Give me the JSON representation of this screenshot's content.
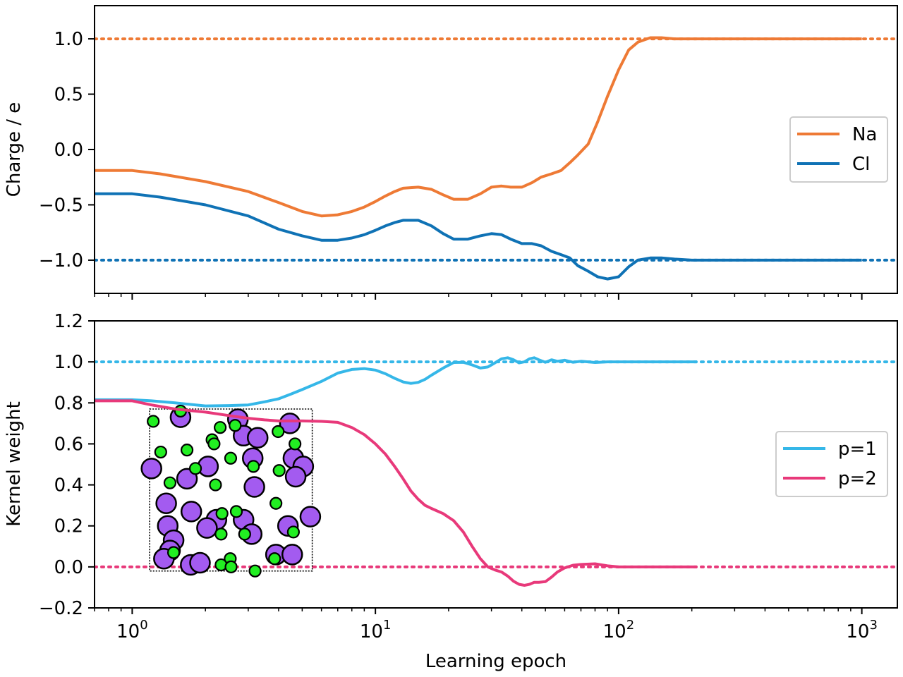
{
  "chart_data": [
    {
      "type": "line",
      "xlabel": "",
      "ylabel": "Charge / e",
      "xscale": "log",
      "xlim": [
        0.7,
        1400
      ],
      "ylim": [
        -1.3,
        1.3
      ],
      "yticks": [
        {
          "value": 1.0,
          "label": "1.0"
        },
        {
          "value": 0.5,
          "label": "0.5"
        },
        {
          "value": 0.0,
          "label": "0.0"
        },
        {
          "value": -0.5,
          "label": "−0.5"
        },
        {
          "value": -1.0,
          "label": "−1.0"
        }
      ],
      "xticks_labeled": false,
      "legend_position": "center-right",
      "series": [
        {
          "name": "Na",
          "color": "#ee7a35",
          "x": [
            0.7,
            1,
            1.3,
            2,
            3,
            4,
            5,
            6,
            7,
            8,
            9,
            10,
            11,
            12,
            13,
            15,
            17,
            19,
            21,
            24,
            27,
            30,
            33,
            36,
            40,
            44,
            48,
            53,
            58,
            63,
            68,
            75,
            82,
            90,
            100,
            110,
            120,
            135,
            150,
            170,
            200,
            300,
            500,
            1000
          ],
          "y": [
            -0.19,
            -0.19,
            -0.22,
            -0.29,
            -0.38,
            -0.48,
            -0.56,
            -0.6,
            -0.59,
            -0.56,
            -0.52,
            -0.47,
            -0.42,
            -0.38,
            -0.35,
            -0.34,
            -0.36,
            -0.41,
            -0.45,
            -0.45,
            -0.4,
            -0.34,
            -0.33,
            -0.34,
            -0.34,
            -0.3,
            -0.25,
            -0.22,
            -0.19,
            -0.12,
            -0.05,
            0.05,
            0.25,
            0.48,
            0.72,
            0.9,
            0.97,
            1.01,
            1.01,
            1.0,
            1.0,
            1.0,
            1.0,
            1.0
          ]
        },
        {
          "name": "Cl",
          "color": "#0f72b5",
          "x": [
            0.7,
            1,
            1.3,
            2,
            3,
            4,
            5,
            6,
            7,
            8,
            9,
            10,
            11,
            12,
            13,
            15,
            17,
            19,
            21,
            24,
            27,
            30,
            33,
            36,
            40,
            44,
            48,
            53,
            58,
            63,
            68,
            75,
            82,
            90,
            100,
            110,
            120,
            135,
            150,
            170,
            200,
            300,
            500,
            1000
          ],
          "y": [
            -0.4,
            -0.4,
            -0.43,
            -0.5,
            -0.6,
            -0.72,
            -0.78,
            -0.82,
            -0.82,
            -0.8,
            -0.77,
            -0.73,
            -0.69,
            -0.66,
            -0.64,
            -0.64,
            -0.69,
            -0.76,
            -0.81,
            -0.81,
            -0.78,
            -0.76,
            -0.77,
            -0.81,
            -0.85,
            -0.85,
            -0.87,
            -0.92,
            -0.95,
            -0.98,
            -1.05,
            -1.1,
            -1.15,
            -1.17,
            -1.15,
            -1.06,
            -1.0,
            -0.98,
            -0.98,
            -0.99,
            -1.0,
            -1.0,
            -1.0,
            -1.0
          ]
        }
      ],
      "reference_lines": [
        {
          "y": 1.0,
          "color": "#ee7a35",
          "style": "dotted"
        },
        {
          "y": -1.0,
          "color": "#0f72b5",
          "style": "dotted"
        }
      ]
    },
    {
      "type": "line",
      "xlabel": "Learning epoch",
      "ylabel": "Kernel weight",
      "xscale": "log",
      "xlim": [
        0.7,
        1400
      ],
      "ylim": [
        -0.2,
        1.2
      ],
      "yticks": [
        {
          "value": 1.2,
          "label": "1.2"
        },
        {
          "value": 1.0,
          "label": "1.0"
        },
        {
          "value": 0.8,
          "label": "0.8"
        },
        {
          "value": 0.6,
          "label": "0.6"
        },
        {
          "value": 0.4,
          "label": "0.4"
        },
        {
          "value": 0.2,
          "label": "0.2"
        },
        {
          "value": 0.0,
          "label": "0.0"
        },
        {
          "value": -0.2,
          "label": "−0.2"
        }
      ],
      "xticks": [
        {
          "value": 1,
          "base": "10",
          "exp": "0"
        },
        {
          "value": 10,
          "base": "10",
          "exp": "1"
        },
        {
          "value": 100,
          "base": "10",
          "exp": "2"
        },
        {
          "value": 1000,
          "base": "10",
          "exp": "3"
        }
      ],
      "legend_position": "center-right",
      "series": [
        {
          "name": "p=1",
          "color": "#35b7e8",
          "x": [
            0.7,
            1,
            1.2,
            1.5,
            2,
            2.5,
            3,
            3.5,
            4,
            4.5,
            5,
            6,
            7,
            8,
            9,
            10,
            11,
            12,
            13,
            14,
            15,
            16,
            17,
            19,
            21,
            23,
            25,
            27,
            29,
            31,
            33,
            35,
            37,
            39,
            41,
            43,
            45,
            47,
            50,
            53,
            56,
            60,
            65,
            70,
            80,
            90,
            100,
            150,
            210
          ],
          "y": [
            0.815,
            0.815,
            0.81,
            0.8,
            0.785,
            0.787,
            0.79,
            0.805,
            0.82,
            0.843,
            0.865,
            0.905,
            0.945,
            0.963,
            0.967,
            0.96,
            0.942,
            0.92,
            0.902,
            0.895,
            0.9,
            0.915,
            0.935,
            0.97,
            0.997,
            0.998,
            0.985,
            0.97,
            0.975,
            0.995,
            1.015,
            1.02,
            1.01,
            0.995,
            1.0,
            1.015,
            1.02,
            1.01,
            0.998,
            1.01,
            1.003,
            1.008,
            0.998,
            1.003,
            0.997,
            1.0,
            1.0,
            1.0,
            1.0
          ]
        },
        {
          "name": "p=2",
          "color": "#e8397a",
          "x": [
            0.7,
            1,
            1.2,
            1.5,
            2,
            2.5,
            3,
            3.5,
            4,
            4.5,
            5,
            6,
            7,
            8,
            9,
            10,
            11,
            12,
            13,
            14,
            15,
            16,
            17,
            19,
            21,
            23,
            25,
            27,
            29,
            31,
            33,
            35,
            37,
            39,
            41,
            43,
            45,
            47,
            50,
            53,
            56,
            60,
            65,
            70,
            80,
            90,
            100,
            150,
            210
          ],
          "y": [
            0.81,
            0.81,
            0.79,
            0.77,
            0.755,
            0.738,
            0.725,
            0.717,
            0.712,
            0.712,
            0.712,
            0.71,
            0.705,
            0.68,
            0.645,
            0.6,
            0.55,
            0.49,
            0.43,
            0.37,
            0.33,
            0.3,
            0.285,
            0.26,
            0.225,
            0.17,
            0.1,
            0.04,
            0.0,
            -0.015,
            -0.025,
            -0.045,
            -0.07,
            -0.085,
            -0.09,
            -0.085,
            -0.075,
            -0.075,
            -0.072,
            -0.05,
            -0.025,
            -0.005,
            0.008,
            0.012,
            0.015,
            0.005,
            0.0,
            0.0,
            0.0
          ]
        }
      ],
      "reference_lines": [
        {
          "y": 1.0,
          "color": "#35b7e8",
          "style": "dotted"
        },
        {
          "y": 0.0,
          "color": "#e8397a",
          "style": "dotted"
        }
      ],
      "inset": {
        "description_free": true,
        "frame": {
          "x_range": [
            1.18,
            5.5
          ],
          "y_range": [
            -0.02,
            0.77
          ]
        },
        "large_atoms": {
          "color": "#a35bf0",
          "points": [
            [
              1.58,
              0.73
            ],
            [
              2.72,
              0.72
            ],
            [
              4.45,
              0.7
            ],
            [
              2.87,
              0.64
            ],
            [
              3.28,
              0.63
            ],
            [
              1.2,
              0.48
            ],
            [
              1.68,
              0.43
            ],
            [
              2.05,
              0.49
            ],
            [
              3.13,
              0.53
            ],
            [
              4.6,
              0.53
            ],
            [
              5.05,
              0.49
            ],
            [
              4.7,
              0.44
            ],
            [
              3.18,
              0.39
            ],
            [
              1.38,
              0.31
            ],
            [
              1.75,
              0.27
            ],
            [
              2.22,
              0.23
            ],
            [
              2.87,
              0.23
            ],
            [
              4.37,
              0.2
            ],
            [
              1.4,
              0.2
            ],
            [
              2.03,
              0.19
            ],
            [
              5.4,
              0.245
            ],
            [
              3.1,
              0.16
            ],
            [
              1.48,
              0.13
            ],
            [
              1.43,
              0.08
            ],
            [
              1.35,
              0.04
            ],
            [
              1.74,
              0.01
            ],
            [
              1.9,
              0.02
            ],
            [
              3.9,
              0.06
            ],
            [
              4.55,
              0.06
            ]
          ]
        },
        "small_atoms": {
          "color": "#22ee22",
          "points": [
            [
              1.22,
              0.71
            ],
            [
              1.58,
              0.76
            ],
            [
              2.3,
              0.68
            ],
            [
              2.65,
              0.69
            ],
            [
              3.98,
              0.66
            ],
            [
              4.67,
              0.6
            ],
            [
              2.13,
              0.62
            ],
            [
              2.17,
              0.6
            ],
            [
              1.31,
              0.56
            ],
            [
              1.68,
              0.57
            ],
            [
              2.54,
              0.53
            ],
            [
              1.82,
              0.48
            ],
            [
              3.15,
              0.49
            ],
            [
              4.02,
              0.47
            ],
            [
              1.43,
              0.41
            ],
            [
              2.2,
              0.4
            ],
            [
              3.9,
              0.31
            ],
            [
              2.34,
              0.26
            ],
            [
              2.68,
              0.27
            ],
            [
              2.32,
              0.16
            ],
            [
              2.9,
              0.16
            ],
            [
              4.6,
              0.17
            ],
            [
              1.48,
              0.07
            ],
            [
              2.53,
              0.04
            ],
            [
              2.32,
              0.01
            ],
            [
              2.55,
              0.0
            ],
            [
              3.2,
              -0.02
            ],
            [
              3.85,
              0.04
            ]
          ]
        }
      }
    }
  ]
}
